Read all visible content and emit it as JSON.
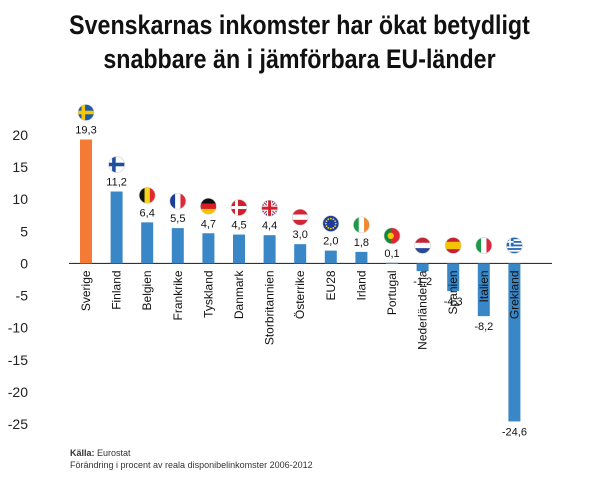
{
  "chart_data": {
    "type": "bar",
    "title_lines": [
      "Svenskarnas inkomster har ökat betydligt",
      "snabbare än i jämförbara EU-länder"
    ],
    "xlabel": "",
    "ylabel": "",
    "ylim": [
      -25,
      20
    ],
    "yticks": [
      20,
      15,
      10,
      5,
      0,
      -5,
      -10,
      -15,
      -20,
      -25
    ],
    "grid": false,
    "categories": [
      "Sverige",
      "Finland",
      "Belgien",
      "Frankrike",
      "Tyskland",
      "Danmark",
      "Storbritannien",
      "Österrike",
      "EU28",
      "Irland",
      "Portugal",
      "Nederländerna",
      "Spanien",
      "Italien",
      "Grekland"
    ],
    "values": [
      19.3,
      11.2,
      6.4,
      5.5,
      4.7,
      4.5,
      4.4,
      3.0,
      2.0,
      1.8,
      0.1,
      -1.2,
      -4.3,
      -8.2,
      -24.6
    ],
    "value_labels": [
      "19,3",
      "11,2",
      "6,4",
      "5,5",
      "4,7",
      "4,5",
      "4,4",
      "3,0",
      "2,0",
      "1,8",
      "0,1",
      "-1,2",
      "-4,3",
      "-8,2",
      "-24,6"
    ],
    "flag_icons": [
      "sweden-flag-icon",
      "finland-flag-icon",
      "belgium-flag-icon",
      "france-flag-icon",
      "germany-flag-icon",
      "denmark-flag-icon",
      "uk-flag-icon",
      "austria-flag-icon",
      "eu-flag-icon",
      "ireland-flag-icon",
      "portugal-flag-icon",
      "netherlands-flag-icon",
      "spain-flag-icon",
      "italy-flag-icon",
      "greece-flag-icon"
    ],
    "colors": {
      "highlight": "#F47A36",
      "default": "#3A87C8",
      "axis": "#333333"
    },
    "highlight_index": 0
  },
  "source": {
    "label": "Källa:",
    "name": "Eurostat",
    "note": "Förändring i procent av reala disponibelinkomster 2006-2012"
  }
}
